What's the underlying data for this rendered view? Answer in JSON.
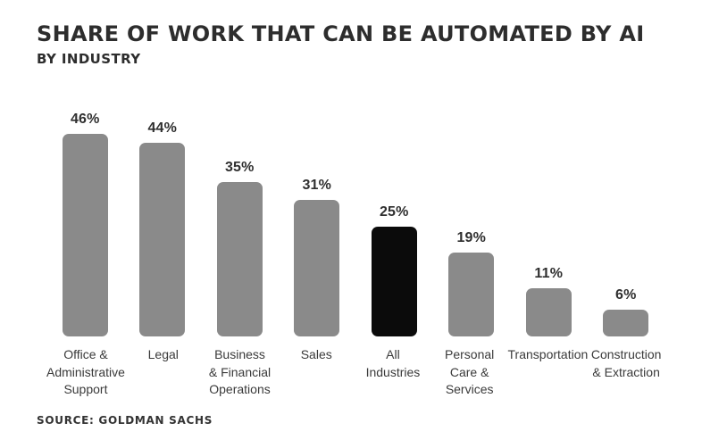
{
  "chart_data": {
    "type": "bar",
    "title": "SHARE OF WORK THAT CAN BE AUTOMATED BY AI",
    "subtitle": "BY INDUSTRY",
    "source": "SOURCE: GOLDMAN SACHS",
    "categories": [
      "Office & Administrative Support",
      "Legal",
      "Business & Financial Operations",
      "Sales",
      "All Industries",
      "Personal Care & Services",
      "Transportation",
      "Construction & Extraction"
    ],
    "label_lines": [
      [
        "Office &",
        "Administrative",
        "Support"
      ],
      [
        "Legal"
      ],
      [
        "Business",
        "& Financial",
        "Operations"
      ],
      [
        "Sales"
      ],
      [
        "All",
        "Industries"
      ],
      [
        "Personal",
        "Care &",
        "Services"
      ],
      [
        "Transportation"
      ],
      [
        "Construction",
        "& Extraction"
      ]
    ],
    "values": [
      46,
      44,
      35,
      31,
      25,
      19,
      11,
      6
    ],
    "value_labels": [
      "46%",
      "44%",
      "35%",
      "31%",
      "25%",
      "19%",
      "11%",
      "6%"
    ],
    "highlight_index": 4,
    "highlight_category": "All Industries",
    "bar_color": "#8a8a8a",
    "highlight_color": "#0b0b0b",
    "text_color": "#2d2d2d",
    "background_color": "#ffffff",
    "ylim": [
      0,
      50
    ],
    "xlabel": "",
    "ylabel": "",
    "grid": false,
    "axes_visible": false,
    "legend": false
  }
}
